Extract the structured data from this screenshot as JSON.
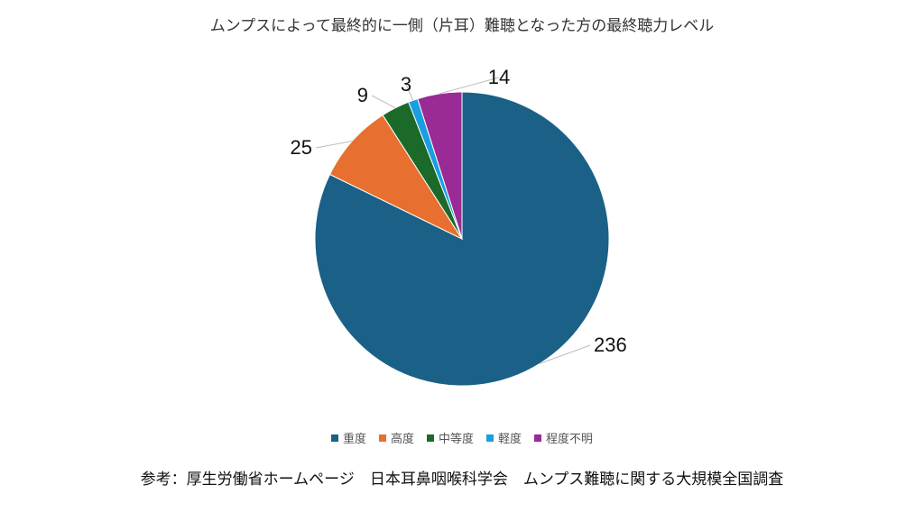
{
  "chart_data": {
    "type": "pie",
    "title": "ムンプスによって最終的に一側（片耳）難聴となった方の最終聴力レベル",
    "categories": [
      "重度",
      "高度",
      "中等度",
      "軽度",
      "程度不明"
    ],
    "values": [
      236,
      25,
      9,
      3,
      14
    ],
    "colors": [
      "#1b6086",
      "#e76f2f",
      "#1b6a2a",
      "#1b9ee0",
      "#9a2a96"
    ],
    "legend_position": "bottom"
  },
  "source_note": "参考：厚生労働省ホームページ　日本耳鼻咽喉科学会　ムンプス難聴に関する大規模全国調査"
}
